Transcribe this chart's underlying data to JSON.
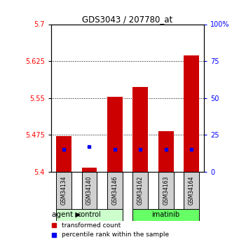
{
  "title": "GDS3043 / 207780_at",
  "samples": [
    "GSM34134",
    "GSM34140",
    "GSM34146",
    "GSM34162",
    "GSM34163",
    "GSM34164"
  ],
  "red_values": [
    5.473,
    5.408,
    5.553,
    5.573,
    5.482,
    5.637
  ],
  "blue_percentiles": [
    15.0,
    17.0,
    15.0,
    15.0,
    15.0,
    15.0
  ],
  "y_min": 5.4,
  "y_max": 5.7,
  "y_ticks": [
    5.4,
    5.475,
    5.55,
    5.625,
    5.7
  ],
  "y_tick_labels": [
    "5.4",
    "5.475",
    "5.55",
    "5.625",
    "5.7"
  ],
  "right_ticks": [
    0,
    25,
    50,
    75,
    100
  ],
  "right_tick_labels": [
    "0",
    "25",
    "50",
    "75",
    "100%"
  ],
  "n_control": 3,
  "n_imatinib": 3,
  "control_color": "#ccffcc",
  "imatinib_color": "#66ff66",
  "bar_color": "#cc0000",
  "dot_color": "#0000ee",
  "bar_width": 0.6
}
